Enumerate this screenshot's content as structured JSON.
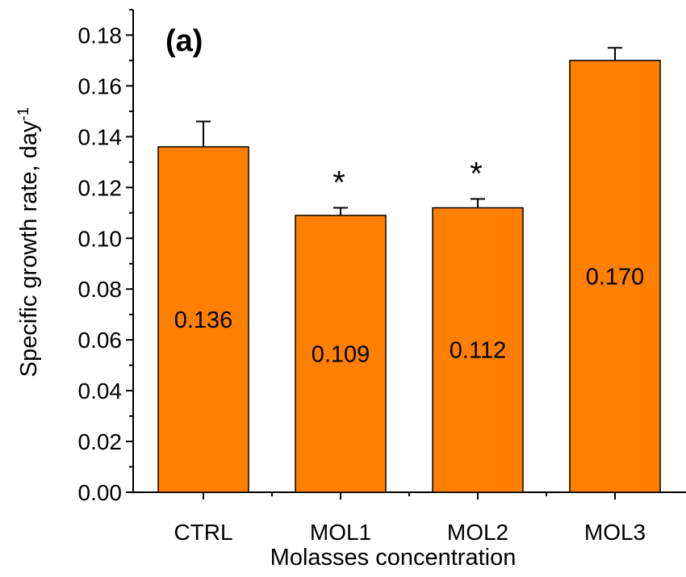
{
  "chart_data": {
    "type": "bar",
    "panel_label": "(a)",
    "categories": [
      "CTRL",
      "MOL1",
      "MOL2",
      "MOL3"
    ],
    "values": [
      0.136,
      0.109,
      0.112,
      0.17
    ],
    "value_labels": [
      "0.136",
      "0.109",
      "0.112",
      "0.170"
    ],
    "errors": [
      0.01,
      0.003,
      0.0035,
      0.005
    ],
    "significance": [
      "",
      "*",
      "*",
      ""
    ],
    "xlabel": "Molasses concentration",
    "ylabel": "Specific growth rate, day",
    "ylabel_superscript": "-1",
    "ylim": [
      0,
      0.19
    ],
    "yticks": [
      0.0,
      0.02,
      0.04,
      0.06,
      0.08,
      0.1,
      0.12,
      0.14,
      0.16,
      0.18
    ],
    "ytick_labels": [
      "0.00",
      "0.02",
      "0.04",
      "0.06",
      "0.08",
      "0.10",
      "0.12",
      "0.14",
      "0.16",
      "0.18"
    ],
    "bar_color": "#ff7f00",
    "edge_color": "#000000",
    "grid": false
  }
}
